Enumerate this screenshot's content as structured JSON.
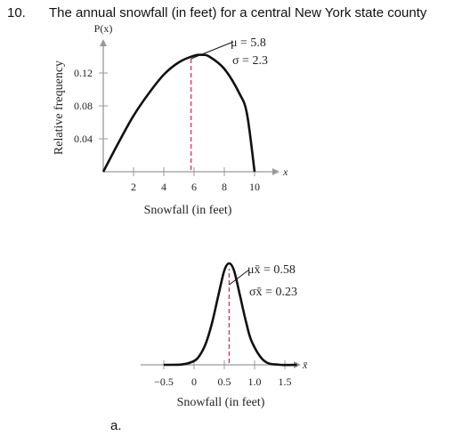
{
  "problem": {
    "number": "10.",
    "text": "The annual snowfall (in feet) for a central New York state county"
  },
  "part_label": "a.",
  "chart_data": [
    {
      "type": "line",
      "y_axis_title": "P(x)",
      "ylabel": "Relative frequency",
      "xlabel": "Snowfall (in feet)",
      "x_axis_symbol": "x",
      "x_ticks": [
        "2",
        "4",
        "6",
        "8",
        "10"
      ],
      "y_ticks": [
        "0.04",
        "0.08",
        "0.12"
      ],
      "xlim": [
        0,
        10.5
      ],
      "ylim": [
        0,
        0.15
      ],
      "x": [
        0,
        1,
        2,
        3,
        4,
        5,
        6,
        6.5,
        7,
        8,
        9,
        9.5,
        10
      ],
      "y": [
        0,
        0.035,
        0.068,
        0.095,
        0.118,
        0.133,
        0.141,
        0.142,
        0.14,
        0.125,
        0.095,
        0.07,
        0
      ],
      "mean_line_x": 5.8,
      "annotation_mu": "μ = 5.8",
      "annotation_sigma": "σ = 2.3",
      "mean_line_color": "#e0336d"
    },
    {
      "type": "line",
      "xlabel": "Snowfall (in feet)",
      "x_axis_symbol": "x̄",
      "x_ticks": [
        "−0.5",
        "0",
        "0.5",
        "1.0",
        "1.5"
      ],
      "xlim": [
        -0.6,
        1.8
      ],
      "ylim": [
        0,
        1.72
      ],
      "x": [
        -0.5,
        -0.2,
        0,
        0.1,
        0.2,
        0.3,
        0.4,
        0.5,
        0.58,
        0.66,
        0.76,
        0.86,
        0.96,
        1.16,
        1.4,
        1.7
      ],
      "y": [
        0,
        0.004,
        0.038,
        0.099,
        0.22,
        0.42,
        0.68,
        0.93,
        1.0,
        0.93,
        0.68,
        0.42,
        0.22,
        0.038,
        0.001,
        0
      ],
      "mean_line_x": 0.58,
      "annotation_mu": "μx̄ = 0.58",
      "annotation_sigma": "σx̄ = 0.23",
      "mean_line_color": "#e0336d"
    }
  ]
}
